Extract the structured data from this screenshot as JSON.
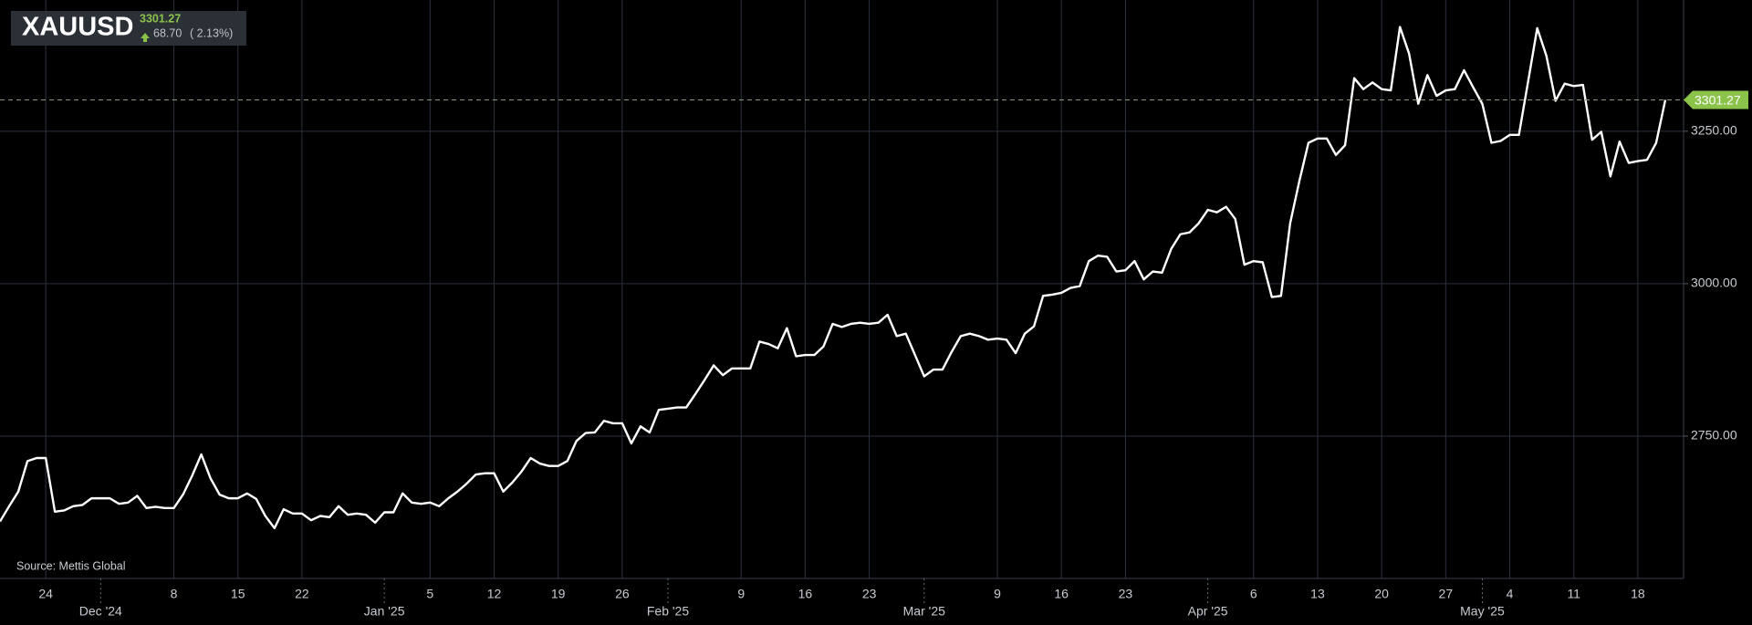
{
  "header": {
    "symbol": "XAUUSD",
    "price": "3301.27",
    "change": "68.70",
    "change_pct": "( 2.13%)"
  },
  "source": "Source: Mettis Global",
  "chart_data": {
    "type": "line",
    "categories": [
      null,
      null,
      null,
      null,
      null,
      "24",
      null,
      null,
      null,
      null,
      null,
      null,
      null,
      null,
      null,
      null,
      null,
      null,
      null,
      "8",
      null,
      null,
      null,
      null,
      null,
      null,
      "15",
      null,
      null,
      null,
      null,
      null,
      null,
      "22",
      null,
      null,
      null,
      null,
      null,
      null,
      null,
      null,
      null,
      null,
      null,
      null,
      null,
      "5",
      null,
      null,
      null,
      null,
      null,
      null,
      "12",
      null,
      null,
      null,
      null,
      null,
      null,
      "19",
      null,
      null,
      null,
      null,
      null,
      null,
      "26",
      null,
      null,
      null,
      null,
      null,
      null,
      null,
      null,
      null,
      null,
      null,
      null,
      "9",
      null,
      null,
      null,
      null,
      null,
      null,
      "16",
      null,
      null,
      null,
      null,
      null,
      null,
      "23",
      null,
      null,
      null,
      null,
      null,
      null,
      null,
      null,
      null,
      null,
      null,
      null,
      null,
      "9",
      null,
      null,
      null,
      null,
      null,
      null,
      "16",
      null,
      null,
      null,
      null,
      null,
      null,
      "23",
      null,
      null,
      null,
      null,
      null,
      null,
      null,
      null,
      null,
      null,
      null,
      null,
      null,
      "6",
      null,
      null,
      null,
      null,
      null,
      null,
      "13",
      null,
      null,
      null,
      null,
      null,
      null,
      "20",
      null,
      null,
      null,
      null,
      null,
      null,
      "27",
      null,
      null,
      null,
      null,
      null,
      null,
      "4",
      null,
      null,
      null,
      null,
      null,
      null,
      "11",
      null,
      null,
      null,
      null,
      null,
      null,
      "18",
      null,
      null,
      null
    ],
    "month_categories": [
      null,
      null,
      null,
      null,
      null,
      null,
      null,
      null,
      null,
      null,
      null,
      "Dec '24",
      null,
      null,
      null,
      null,
      null,
      null,
      null,
      null,
      null,
      null,
      null,
      null,
      null,
      null,
      null,
      null,
      null,
      null,
      null,
      null,
      null,
      null,
      null,
      null,
      null,
      null,
      null,
      null,
      null,
      null,
      "Jan '25",
      null,
      null,
      null,
      null,
      null,
      null,
      null,
      null,
      null,
      null,
      null,
      null,
      null,
      null,
      null,
      null,
      null,
      null,
      null,
      null,
      null,
      null,
      null,
      null,
      null,
      null,
      null,
      null,
      null,
      null,
      "Feb '25",
      null,
      null,
      null,
      null,
      null,
      null,
      null,
      null,
      null,
      null,
      null,
      null,
      null,
      null,
      null,
      null,
      null,
      null,
      null,
      null,
      null,
      null,
      null,
      null,
      null,
      null,
      null,
      "Mar '25",
      null,
      null,
      null,
      null,
      null,
      null,
      null,
      null,
      null,
      null,
      null,
      null,
      null,
      null,
      null,
      null,
      null,
      null,
      null,
      null,
      null,
      null,
      null,
      null,
      null,
      null,
      null,
      null,
      null,
      null,
      "Apr '25",
      null,
      null,
      null,
      null,
      null,
      null,
      null,
      null,
      null,
      null,
      null,
      null,
      null,
      null,
      null,
      null,
      null,
      null,
      null,
      null,
      null,
      null,
      null,
      null,
      null,
      null,
      null,
      null,
      null,
      "May '25",
      null,
      null,
      null,
      null,
      null,
      null,
      null,
      null,
      null,
      null,
      null,
      null,
      null,
      null,
      null,
      null,
      null,
      null,
      null,
      null
    ],
    "series": [
      {
        "name": "XAUUSD",
        "color": "#ffffff",
        "values": [
          2610,
          2635,
          2659,
          2709,
          2714,
          2714,
          2626,
          2628,
          2635,
          2637,
          2648,
          2648,
          2648,
          2639,
          2641,
          2652,
          2632,
          2634,
          2632,
          2632,
          2654,
          2685,
          2720,
          2681,
          2654,
          2648,
          2648,
          2656,
          2647,
          2619,
          2599,
          2630,
          2623,
          2623,
          2612,
          2619,
          2617,
          2635,
          2621,
          2623,
          2621,
          2608,
          2625,
          2625,
          2656,
          2641,
          2639,
          2641,
          2635,
          2648,
          2659,
          2672,
          2687,
          2689,
          2689,
          2659,
          2674,
          2692,
          2714,
          2705,
          2701,
          2701,
          2709,
          2742,
          2755,
          2756,
          2775,
          2771,
          2771,
          2738,
          2766,
          2756,
          2793,
          2795,
          2797,
          2797,
          2819,
          2842,
          2866,
          2850,
          2861,
          2861,
          2861,
          2905,
          2901,
          2894,
          2927,
          2881,
          2883,
          2883,
          2897,
          2934,
          2929,
          2934,
          2936,
          2934,
          2936,
          2949,
          2914,
          2918,
          2883,
          2848,
          2859,
          2859,
          2888,
          2914,
          2918,
          2914,
          2908,
          2910,
          2908,
          2886,
          2918,
          2930,
          2980,
          2982,
          2985,
          2993,
          2996,
          3037,
          3046,
          3044,
          3020,
          3022,
          3037,
          3007,
          3020,
          3018,
          3057,
          3081,
          3084,
          3099,
          3121,
          3117,
          3126,
          3106,
          3031,
          3037,
          3035,
          2978,
          2980,
          3099,
          3168,
          3231,
          3238,
          3238,
          3211,
          3227,
          3337,
          3319,
          3330,
          3319,
          3317,
          3421,
          3377,
          3295,
          3342,
          3308,
          3317,
          3319,
          3350,
          3322,
          3295,
          3231,
          3234,
          3244,
          3244,
          3331,
          3419,
          3374,
          3300,
          3328,
          3324,
          3326,
          3236,
          3249,
          3176,
          3233,
          3198,
          3201,
          3203,
          3231,
          3301.27
        ]
      }
    ],
    "ylim": [
      2516.5,
      3465.2
    ],
    "yticks": [
      {
        "value": 2750,
        "label": "2750.00"
      },
      {
        "value": 3000,
        "label": "3000.00"
      },
      {
        "value": 3250,
        "label": "3250.00"
      }
    ],
    "grid": true,
    "last_price_tag_color": "#8bc34a"
  }
}
